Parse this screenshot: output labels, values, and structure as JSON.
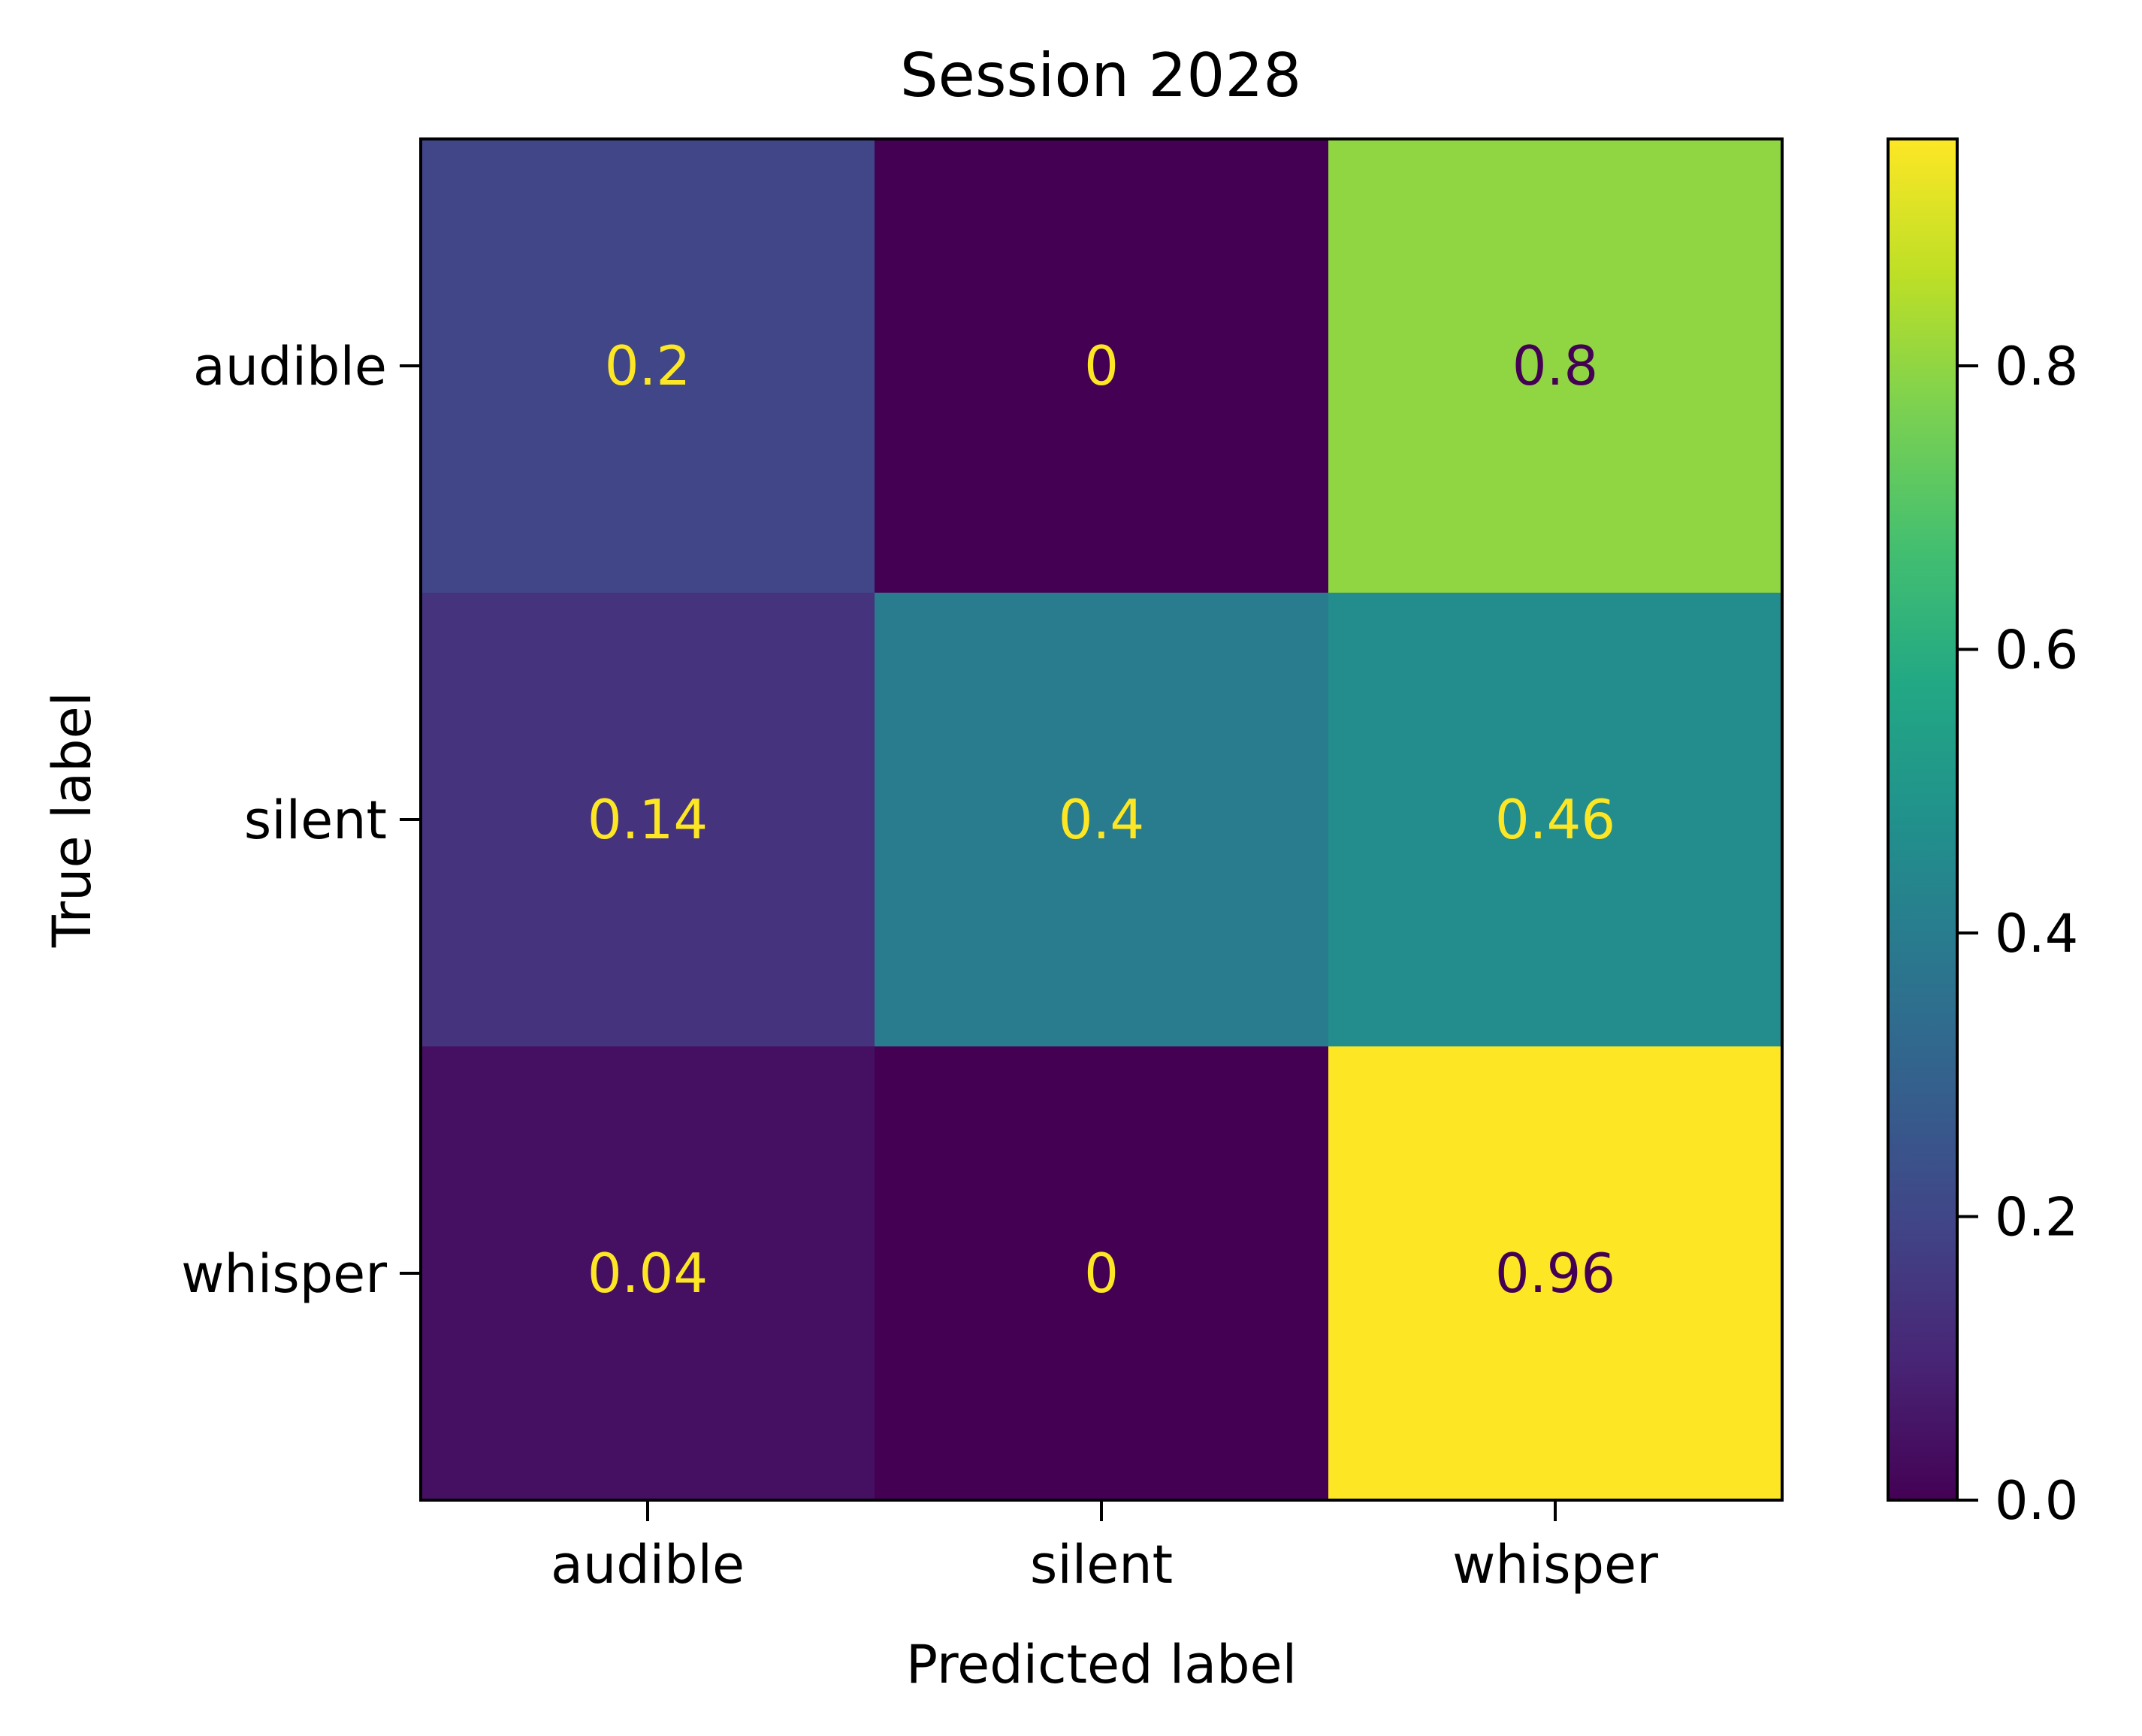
{
  "chart_data": {
    "type": "heatmap",
    "title": "Session 2028",
    "xlabel": "Predicted label",
    "ylabel": "True label",
    "x_categories": [
      "audible",
      "silent",
      "whisper"
    ],
    "y_categories": [
      "audible",
      "silent",
      "whisper"
    ],
    "values": [
      [
        0.2,
        0.0,
        0.8
      ],
      [
        0.14,
        0.4,
        0.46
      ],
      [
        0.04,
        0.0,
        0.96
      ]
    ],
    "value_labels": [
      [
        "0.2",
        "0",
        "0.8"
      ],
      [
        "0.14",
        "0.4",
        "0.46"
      ],
      [
        "0.04",
        "0",
        "0.96"
      ]
    ],
    "colormap": "viridis",
    "color_range": [
      0.0,
      0.96
    ],
    "colorbar_ticks": [
      0.0,
      0.2,
      0.4,
      0.6,
      0.8
    ],
    "colorbar_tick_labels": [
      "0.0",
      "0.2",
      "0.4",
      "0.6",
      "0.8"
    ],
    "text_color_light": "#fde725",
    "text_color_dark": "#440154",
    "grid": false
  }
}
